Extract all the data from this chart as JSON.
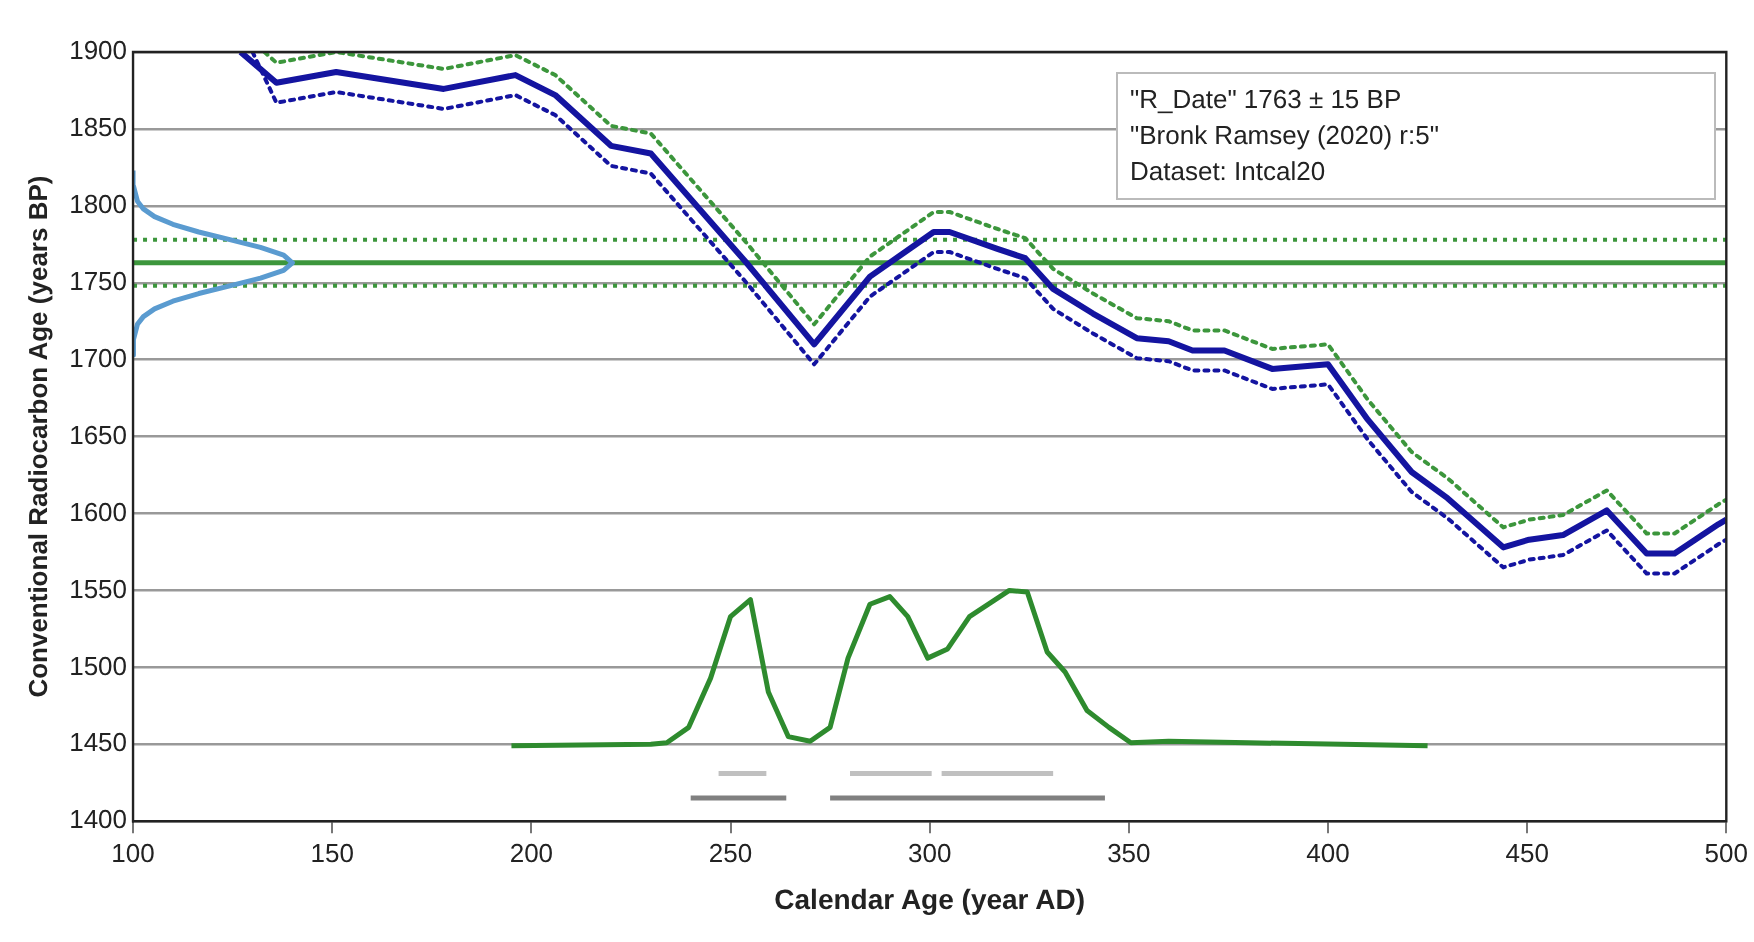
{
  "chart_data": {
    "type": "line",
    "xlabel": "Calendar Age (year AD)",
    "ylabel": "Conventional Radiocarbon Age (years BP)",
    "xlim": [
      100,
      500
    ],
    "xticks": [
      100,
      150,
      200,
      250,
      300,
      350,
      400,
      450,
      500
    ],
    "ylim": [
      1400,
      1900
    ],
    "yticks": [
      1400,
      1450,
      1500,
      1550,
      1600,
      1650,
      1700,
      1750,
      1800,
      1850,
      1900
    ],
    "grid": "y",
    "legend": false,
    "marker": "none",
    "annotations": [
      "\"R_Date\" 1763 ± 15 BP",
      "\"Bronk Ramsey (2020) r:5\"",
      "Dataset: Intcal20"
    ],
    "ref_lines": [
      {
        "axis": "y",
        "value": 1763,
        "color": "#3c963c",
        "line_style": "solid"
      },
      {
        "axis": "y",
        "value": 1778,
        "color": "#3c963c",
        "line_style": "dotted"
      },
      {
        "axis": "y",
        "value": 1748,
        "color": "#3c963c",
        "line_style": "dotted"
      }
    ],
    "series": [
      {
        "color": "#1414a0",
        "line_style": "solid",
        "x": [
          127,
          136,
          151,
          178,
          196,
          206,
          220,
          230,
          254,
          271,
          285,
          301,
          305,
          317,
          324,
          331,
          341,
          352,
          360,
          366,
          374,
          386,
          400,
          410,
          421,
          430,
          444,
          450.5,
          459,
          470,
          480,
          487,
          498,
          500
        ],
        "values": [
          1900,
          1880,
          1887,
          1876,
          1885,
          1872,
          1839,
          1834,
          1763,
          1710,
          1754,
          1783,
          1783,
          1772,
          1766,
          1746,
          1730,
          1714,
          1712,
          1706,
          1706,
          1694,
          1697,
          1661,
          1627,
          1610,
          1578,
          1583,
          1586,
          1602,
          1574,
          1574,
          1593,
          1596
        ]
      },
      {
        "color": "#3c963c",
        "line_style": "dotted",
        "x": [
          133,
          136,
          151,
          178,
          196,
          206,
          220,
          230,
          254,
          271,
          285,
          301,
          305,
          317,
          324,
          331,
          341,
          352,
          360,
          366,
          374,
          386,
          400,
          410,
          421,
          430,
          444,
          450.5,
          459,
          470,
          480,
          487,
          498,
          500
        ],
        "values": [
          1900,
          1893,
          1900,
          1889,
          1898,
          1885,
          1852,
          1847,
          1776,
          1723,
          1767,
          1796,
          1796,
          1785,
          1779,
          1759,
          1743,
          1727,
          1725,
          1719,
          1719,
          1707,
          1710,
          1674,
          1640,
          1623,
          1591,
          1596,
          1599,
          1615,
          1587,
          1587,
          1606,
          1609
        ]
      },
      {
        "color": "#1414a0",
        "line_style": "dotted",
        "x": [
          130,
          136,
          151,
          178,
          196,
          206,
          220,
          230,
          254,
          271,
          285,
          301,
          305,
          317,
          324,
          331,
          341,
          352,
          360,
          366,
          374,
          386,
          400,
          410,
          421,
          430,
          444,
          450.5,
          459,
          470,
          480,
          487,
          498,
          500
        ],
        "values": [
          1900,
          1867,
          1874,
          1863,
          1872,
          1859,
          1826,
          1821,
          1750,
          1697,
          1741,
          1770,
          1770,
          1759,
          1753,
          1733,
          1717,
          1701,
          1699,
          1693,
          1693,
          1681,
          1684,
          1648,
          1614,
          1597,
          1565,
          1570,
          1573,
          1589,
          1561,
          1561,
          1580,
          1583
        ]
      },
      {
        "color": "#5a9bd0",
        "line_style": "solid",
        "x": [
          100,
          100.1,
          101.1,
          102.6,
          105.4,
          110,
          116.5,
          124.3,
          132,
          137.8,
          140,
          137.8,
          132,
          124.3,
          116.5,
          110,
          105.4,
          102.6,
          101.1,
          100.1,
          100
        ],
        "values": [
          1703,
          1713,
          1723,
          1728,
          1733,
          1738,
          1743,
          1748,
          1753,
          1758,
          1763,
          1768,
          1773,
          1778,
          1783,
          1788,
          1793,
          1798,
          1803,
          1813,
          1823
        ]
      },
      {
        "color": "#2e8b2e",
        "line_style": "solid",
        "x": [
          195,
          230,
          234,
          239.5,
          245,
          250,
          255,
          259.5,
          264.5,
          270,
          275,
          279.5,
          285,
          290,
          294.5,
          299.5,
          304.5,
          310,
          320,
          324.5,
          329.5,
          334,
          339.5,
          345,
          350.5,
          360,
          380,
          425
        ],
        "values": [
          1449,
          1450,
          1451,
          1461,
          1493,
          1533,
          1544,
          1484,
          1455,
          1452,
          1461,
          1506,
          1541,
          1546,
          1533,
          1506,
          1512,
          1533,
          1550,
          1549,
          1510,
          1497,
          1472,
          1461,
          1451,
          1452,
          1451,
          1449
        ]
      },
      {
        "color": "#c0c0c0",
        "line_style": "solid",
        "x": [
          247,
          259,
          270,
          280,
          300.5,
          302,
          303,
          331
        ],
        "values": [
          1431,
          1431,
          null,
          1431,
          1431,
          null,
          1431,
          1431
        ]
      },
      {
        "color": "#808080",
        "line_style": "solid",
        "x": [
          240,
          264,
          270,
          275,
          344
        ],
        "values": [
          1415,
          1415,
          null,
          1415,
          1415
        ]
      }
    ]
  }
}
